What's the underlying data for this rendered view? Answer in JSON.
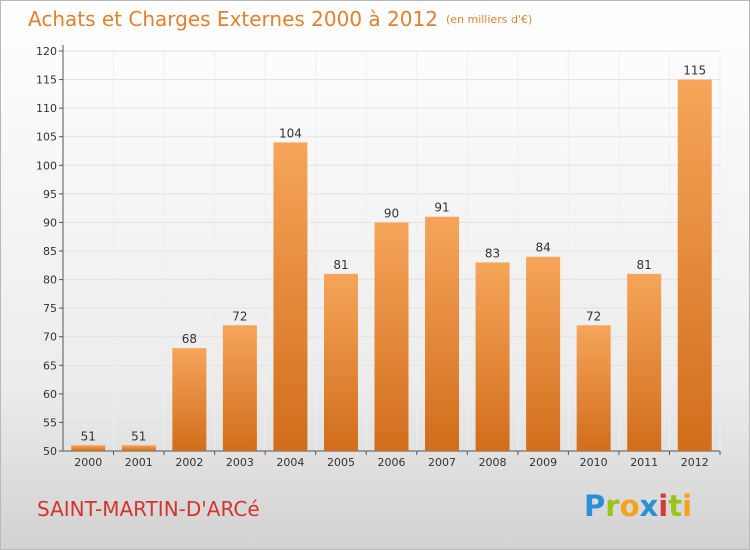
{
  "header": {
    "title": "Achats et Charges Externes 2000 à 2012",
    "subtitle": "(en milliers d'€)"
  },
  "footer": {
    "place": "SAINT-MARTIN-D'ARCé",
    "logo": "Proxiti"
  },
  "colors": {
    "bar_top": "#f6a55a",
    "bar_bottom": "#d16d1b",
    "title": "#e2802f",
    "place": "#d4332e"
  },
  "chart_data": {
    "type": "bar",
    "title": "Achats et Charges Externes 2000 à 2012",
    "subtitle": "(en milliers d'€)",
    "categories": [
      "2000",
      "2001",
      "2002",
      "2003",
      "2004",
      "2005",
      "2006",
      "2007",
      "2008",
      "2009",
      "2010",
      "2011",
      "2012"
    ],
    "values": [
      51,
      51,
      68,
      72,
      104,
      81,
      90,
      91,
      83,
      84,
      72,
      81,
      115
    ],
    "ylim": [
      50,
      120
    ],
    "yticks": [
      50,
      55,
      60,
      65,
      70,
      75,
      80,
      85,
      90,
      95,
      100,
      105,
      110,
      115,
      120
    ],
    "grid": true,
    "data_labels": true,
    "xlabel": "",
    "ylabel": ""
  }
}
